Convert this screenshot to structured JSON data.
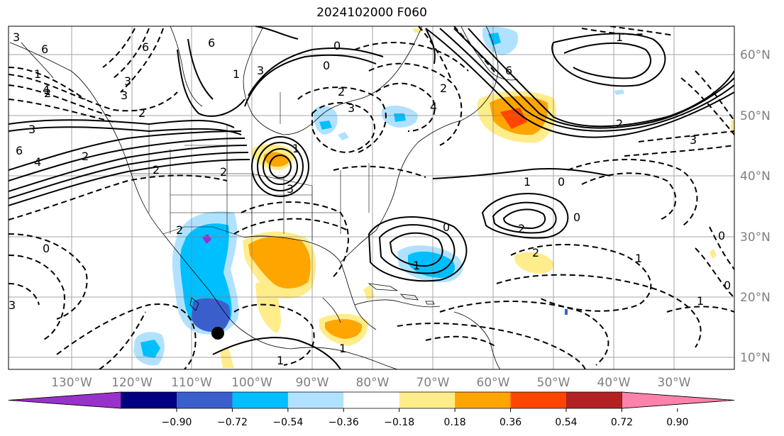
{
  "title": "2024102000 F060",
  "lon_labels": [
    "130°W",
    "120°W",
    "110°W",
    "100°W",
    "90°W",
    "80°W",
    "70°W",
    "60°W",
    "50°W",
    "40°W",
    "30°W"
  ],
  "lat_labels": [
    "60°N",
    "50°N",
    "40°N",
    "30°N",
    "20°N",
    "10°N"
  ],
  "colorbar": {
    "colors": [
      "#9932cc",
      "#000080",
      "#3a5fcd",
      "#00bfff",
      "#b0e2ff",
      "#ffffff",
      "#ffec8b",
      "#ffa500",
      "#ff4500",
      "#b22222",
      "#ff82ab"
    ],
    "tick_labels": [
      "−0.90",
      "−0.72",
      "−0.54",
      "−0.36",
      "−0.18",
      "0.18",
      "0.36",
      "0.54",
      "0.72",
      "0.90"
    ]
  },
  "contour_labels": [
    "6",
    "3",
    "1",
    "2",
    "4",
    "6",
    "3",
    "0",
    "2",
    "2",
    "3",
    "4",
    "3",
    "6",
    "1",
    "6",
    "2",
    "3",
    "2",
    "0",
    "2",
    "1",
    "0",
    "3",
    "2",
    "3",
    "6",
    "4",
    "2",
    "1",
    "0",
    "1",
    "2",
    "0",
    "3",
    "0",
    "2",
    "1",
    "0",
    "1",
    "1",
    "0",
    "2",
    "1",
    "1",
    "3"
  ],
  "marker": "storm-center-dot"
}
